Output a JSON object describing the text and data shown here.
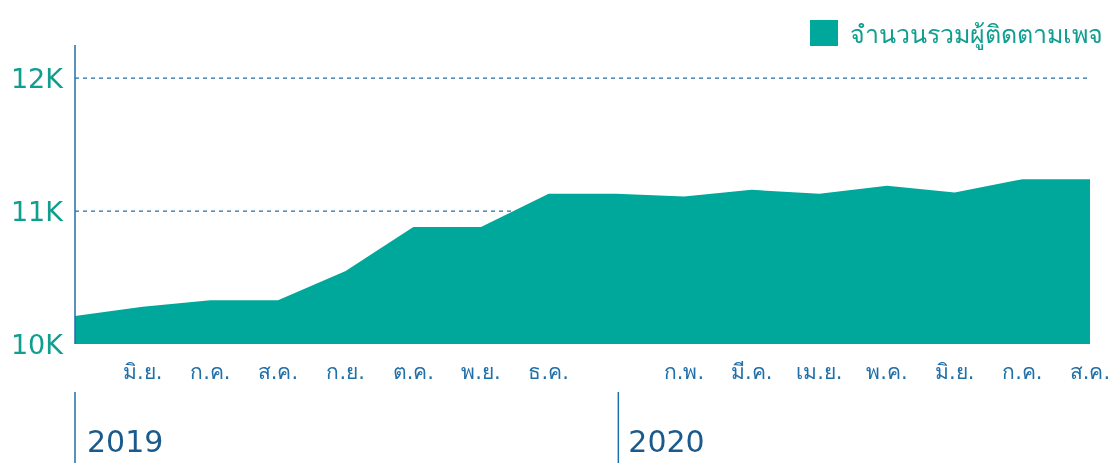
{
  "chart_data": {
    "type": "area",
    "categories": [
      null,
      "มิ.ย.",
      "ก.ค.",
      "ส.ค.",
      "ก.ย.",
      "ต.ค.",
      "พ.ย.",
      "ธ.ค.",
      null,
      "ก.พ.",
      "มี.ค.",
      "เม.ย.",
      "พ.ค.",
      "มิ.ย.",
      "ก.ค.",
      "ส.ค."
    ],
    "series": [
      {
        "name": "จำนวนรวมผู้ติดตามเพจ",
        "color": "#00a89b",
        "values": [
          10210,
          10280,
          10330,
          10330,
          10550,
          10880,
          10880,
          11130,
          11130,
          11110,
          11160,
          11130,
          11190,
          11140,
          11240,
          11240
        ]
      }
    ],
    "ylim": [
      10000,
      12250
    ],
    "yticks": [
      {
        "value": 10000,
        "label": "10K"
      },
      {
        "value": 11000,
        "label": "11K"
      },
      {
        "value": 12000,
        "label": "12K"
      }
    ],
    "grid": "y",
    "legend": "top right",
    "annotations": [
      "2019",
      "2020"
    ]
  }
}
